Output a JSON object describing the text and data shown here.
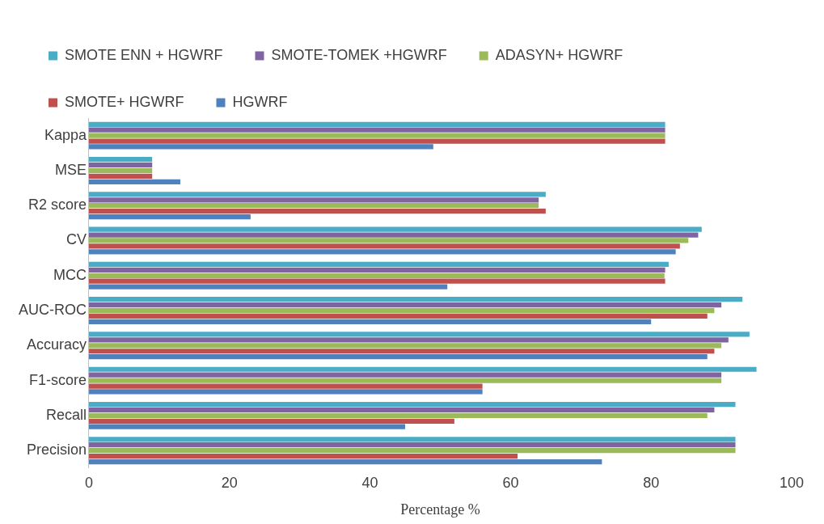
{
  "chart_data": {
    "type": "bar",
    "orientation": "horizontal",
    "xlabel": "Percentage %",
    "categories": [
      "Kappa",
      "MSE",
      "R2 score",
      "CV",
      "MCC",
      "AUC-ROC",
      "Accuracy",
      "F1-score",
      "Recall",
      "Precision"
    ],
    "series": [
      {
        "name": "SMOTE ENN + HGWRF",
        "color": "#4bacc6",
        "values": [
          82,
          9,
          65,
          87.2,
          82.5,
          93,
          94,
          95,
          92,
          92
        ]
      },
      {
        "name": "SMOTE-TOMEK +HGWRF",
        "color": "#8064a2",
        "values": [
          82,
          9,
          64,
          86.7,
          82,
          90,
          91,
          90,
          89,
          92
        ]
      },
      {
        "name": "ADASYN+ HGWRF",
        "color": "#9bbb59",
        "values": [
          82,
          9,
          64,
          85.3,
          81.9,
          89,
          90,
          90,
          88,
          92
        ]
      },
      {
        "name": "SMOTE+ HGWRF",
        "color": "#c0504d",
        "values": [
          82,
          9,
          65,
          84.1,
          82,
          88,
          89,
          56,
          52,
          61
        ]
      },
      {
        "name": "HGWRF",
        "color": "#4f81bd",
        "values": [
          49,
          13,
          23,
          83.5,
          51,
          80,
          88,
          56,
          45,
          73
        ]
      }
    ],
    "xlim": [
      0,
      100
    ],
    "xticks": [
      0,
      20,
      40,
      60,
      80,
      100
    ],
    "grid": false,
    "legend": "top"
  }
}
